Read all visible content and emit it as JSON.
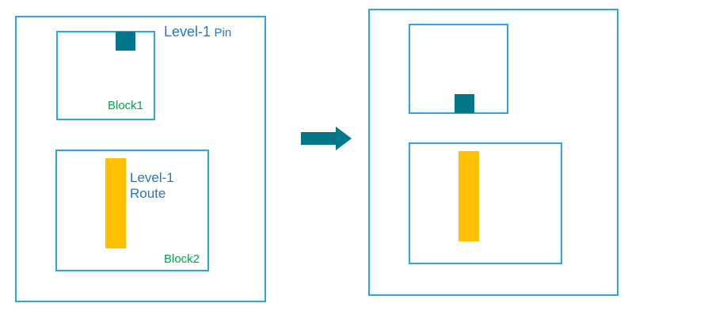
{
  "colors": {
    "outline": "#29a8e0",
    "pin": "#00788a",
    "route": "#ffc000",
    "label_text": "#2878b8",
    "block_label": "#00a84f",
    "arrow": "#00788a"
  },
  "before": {
    "pin_label": {
      "main": "Level-1",
      "suffix": "Pin"
    },
    "route_label": {
      "line1": "Level-1",
      "line2": "Route"
    },
    "block1_label": "Block1",
    "block2_label": "Block2"
  },
  "arrow_icon": "right-arrow-icon"
}
